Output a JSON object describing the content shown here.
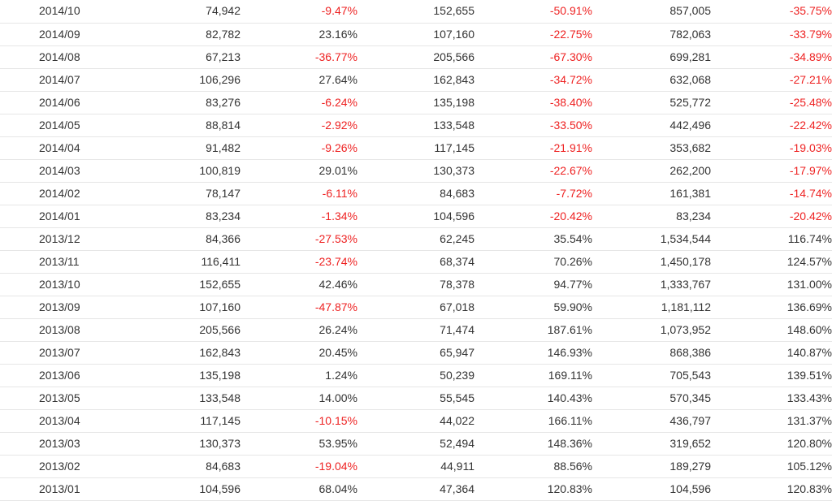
{
  "colors": {
    "negative": "#ee2222",
    "text": "#333333",
    "row_border": "#e6e6e6"
  },
  "table": {
    "rows": [
      {
        "month": "2014/10",
        "v1": "74,942",
        "p1": "-9.47%",
        "v2": "152,655",
        "p2": "-50.91%",
        "v3": "857,005",
        "p3": "-35.75%"
      },
      {
        "month": "2014/09",
        "v1": "82,782",
        "p1": "23.16%",
        "v2": "107,160",
        "p2": "-22.75%",
        "v3": "782,063",
        "p3": "-33.79%"
      },
      {
        "month": "2014/08",
        "v1": "67,213",
        "p1": "-36.77%",
        "v2": "205,566",
        "p2": "-67.30%",
        "v3": "699,281",
        "p3": "-34.89%"
      },
      {
        "month": "2014/07",
        "v1": "106,296",
        "p1": "27.64%",
        "v2": "162,843",
        "p2": "-34.72%",
        "v3": "632,068",
        "p3": "-27.21%"
      },
      {
        "month": "2014/06",
        "v1": "83,276",
        "p1": "-6.24%",
        "v2": "135,198",
        "p2": "-38.40%",
        "v3": "525,772",
        "p3": "-25.48%"
      },
      {
        "month": "2014/05",
        "v1": "88,814",
        "p1": "-2.92%",
        "v2": "133,548",
        "p2": "-33.50%",
        "v3": "442,496",
        "p3": "-22.42%"
      },
      {
        "month": "2014/04",
        "v1": "91,482",
        "p1": "-9.26%",
        "v2": "117,145",
        "p2": "-21.91%",
        "v3": "353,682",
        "p3": "-19.03%"
      },
      {
        "month": "2014/03",
        "v1": "100,819",
        "p1": "29.01%",
        "v2": "130,373",
        "p2": "-22.67%",
        "v3": "262,200",
        "p3": "-17.97%"
      },
      {
        "month": "2014/02",
        "v1": "78,147",
        "p1": "-6.11%",
        "v2": "84,683",
        "p2": "-7.72%",
        "v3": "161,381",
        "p3": "-14.74%"
      },
      {
        "month": "2014/01",
        "v1": "83,234",
        "p1": "-1.34%",
        "v2": "104,596",
        "p2": "-20.42%",
        "v3": "83,234",
        "p3": "-20.42%"
      },
      {
        "month": "2013/12",
        "v1": "84,366",
        "p1": "-27.53%",
        "v2": "62,245",
        "p2": "35.54%",
        "v3": "1,534,544",
        "p3": "116.74%"
      },
      {
        "month": "2013/11",
        "v1": "116,411",
        "p1": "-23.74%",
        "v2": "68,374",
        "p2": "70.26%",
        "v3": "1,450,178",
        "p3": "124.57%"
      },
      {
        "month": "2013/10",
        "v1": "152,655",
        "p1": "42.46%",
        "v2": "78,378",
        "p2": "94.77%",
        "v3": "1,333,767",
        "p3": "131.00%"
      },
      {
        "month": "2013/09",
        "v1": "107,160",
        "p1": "-47.87%",
        "v2": "67,018",
        "p2": "59.90%",
        "v3": "1,181,112",
        "p3": "136.69%"
      },
      {
        "month": "2013/08",
        "v1": "205,566",
        "p1": "26.24%",
        "v2": "71,474",
        "p2": "187.61%",
        "v3": "1,073,952",
        "p3": "148.60%"
      },
      {
        "month": "2013/07",
        "v1": "162,843",
        "p1": "20.45%",
        "v2": "65,947",
        "p2": "146.93%",
        "v3": "868,386",
        "p3": "140.87%"
      },
      {
        "month": "2013/06",
        "v1": "135,198",
        "p1": "1.24%",
        "v2": "50,239",
        "p2": "169.11%",
        "v3": "705,543",
        "p3": "139.51%"
      },
      {
        "month": "2013/05",
        "v1": "133,548",
        "p1": "14.00%",
        "v2": "55,545",
        "p2": "140.43%",
        "v3": "570,345",
        "p3": "133.43%"
      },
      {
        "month": "2013/04",
        "v1": "117,145",
        "p1": "-10.15%",
        "v2": "44,022",
        "p2": "166.11%",
        "v3": "436,797",
        "p3": "131.37%"
      },
      {
        "month": "2013/03",
        "v1": "130,373",
        "p1": "53.95%",
        "v2": "52,494",
        "p2": "148.36%",
        "v3": "319,652",
        "p3": "120.80%"
      },
      {
        "month": "2013/02",
        "v1": "84,683",
        "p1": "-19.04%",
        "v2": "44,911",
        "p2": "88.56%",
        "v3": "189,279",
        "p3": "105.12%"
      },
      {
        "month": "2013/01",
        "v1": "104,596",
        "p1": "68.04%",
        "v2": "47,364",
        "p2": "120.83%",
        "v3": "104,596",
        "p3": "120.83%"
      }
    ]
  }
}
